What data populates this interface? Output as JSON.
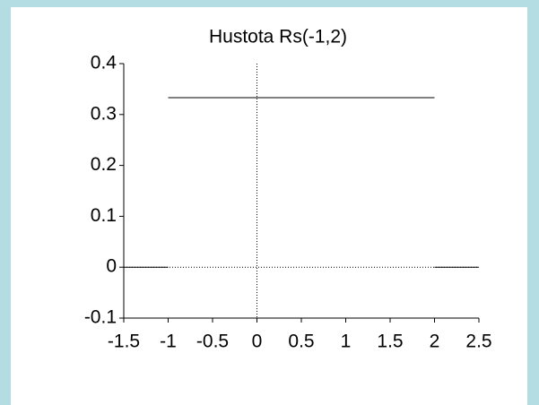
{
  "chart_data": {
    "type": "line",
    "title": "Hustota Rs(-1,2)",
    "x": [
      -1.5,
      -1,
      null,
      -1,
      2,
      null,
      2,
      2.5
    ],
    "values": [
      0,
      0,
      null,
      0.333,
      0.333,
      null,
      0,
      0
    ],
    "color": "#000000",
    "xlim": [
      -1.5,
      2.5
    ],
    "xticks": [
      -1.5,
      -1,
      -0.5,
      0,
      0.5,
      1,
      1.5,
      2,
      2.5
    ],
    "ylim": [
      -0.1,
      0.4
    ],
    "yticks": [
      -0.1,
      0,
      0.1,
      0.2,
      0.3,
      0.4
    ]
  }
}
